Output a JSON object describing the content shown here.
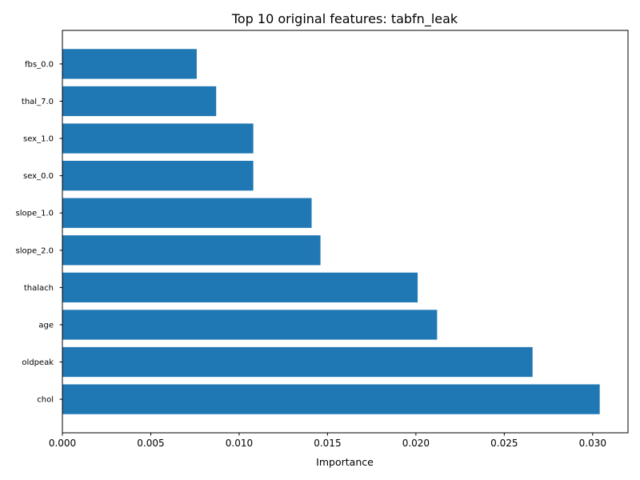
{
  "chart_data": {
    "type": "bar",
    "orientation": "horizontal",
    "title": "Top 10 original features: tabfn_leak",
    "xlabel": "Importance",
    "ylabel": "",
    "categories": [
      "chol",
      "oldpeak",
      "age",
      "thalach",
      "slope_2.0",
      "slope_1.0",
      "sex_0.0",
      "sex_1.0",
      "thal_7.0",
      "fbs_0.0"
    ],
    "values": [
      0.0304,
      0.0266,
      0.0212,
      0.0201,
      0.0146,
      0.0141,
      0.0108,
      0.0108,
      0.0087,
      0.0076
    ],
    "xlim": [
      0,
      0.032
    ],
    "xticks": [
      0,
      0.005,
      0.01,
      0.015,
      0.02,
      0.025,
      0.03
    ],
    "xtick_labels": [
      "0.000",
      "0.005",
      "0.010",
      "0.015",
      "0.020",
      "0.025",
      "0.030"
    ],
    "bar_color": "#1f77b4",
    "grid": false,
    "legend": "none"
  }
}
